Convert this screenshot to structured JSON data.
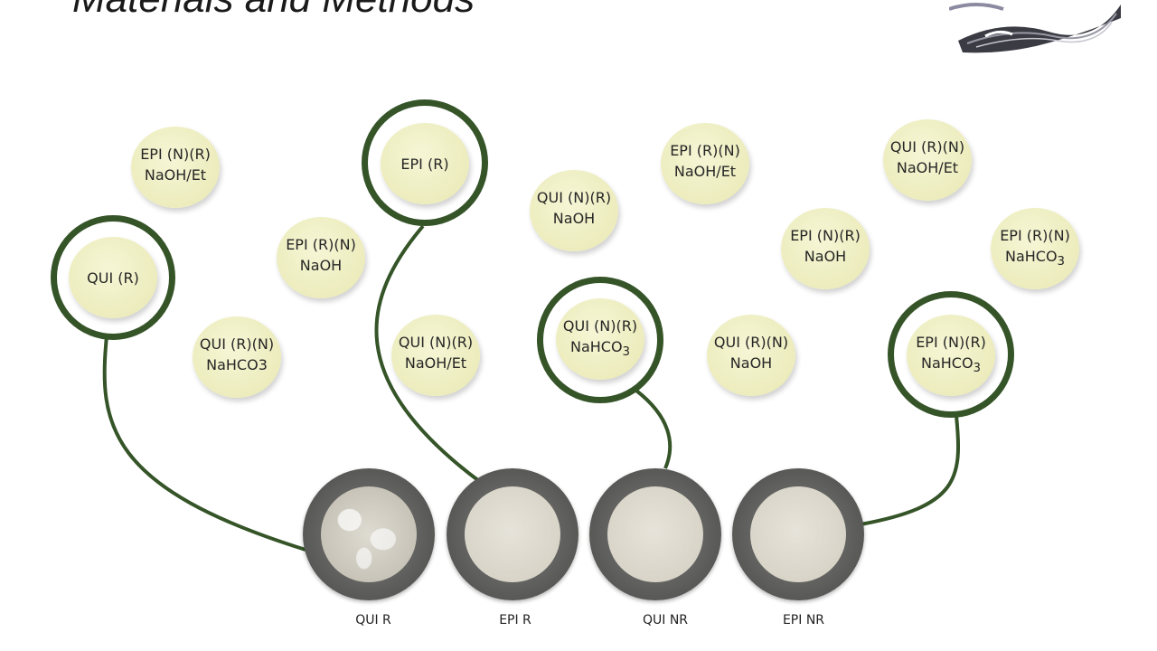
{
  "slide": {
    "title": "Materials and Methods"
  },
  "bubbles": [
    {
      "line1": "EPI (N)(R)",
      "line2": "NaOH/Et",
      "sub": ""
    },
    {
      "line1": "QUI (R)",
      "line2": "",
      "sub": ""
    },
    {
      "line1": "EPI (R)",
      "line2": "",
      "sub": ""
    },
    {
      "line1": "EPI (R)(N)",
      "line2": "NaOH",
      "sub": ""
    },
    {
      "line1": "QUI (R)(N)",
      "line2": "NaHCO3",
      "sub": ""
    },
    {
      "line1": "QUI (N)(R)",
      "line2": "NaOH/Et",
      "sub": ""
    },
    {
      "line1": "QUI (N)(R)",
      "line2": "NaOH",
      "sub": ""
    },
    {
      "line1": "QUI (N)(R)",
      "line2": "NaHCO",
      "sub": "3"
    },
    {
      "line1": "EPI (R)(N)",
      "line2": "NaOH/Et",
      "sub": ""
    },
    {
      "line1": "QUI (R)(N)",
      "line2": "NaOH",
      "sub": ""
    },
    {
      "line1": "EPI (N)(R)",
      "line2": "NaOH",
      "sub": ""
    },
    {
      "line1": "QUI (R)(N)",
      "line2": "NaOH/Et",
      "sub": ""
    },
    {
      "line1": "EPI (R)(N)",
      "line2": "NaHCO",
      "sub": "3"
    },
    {
      "line1": "EPI (N)(R)",
      "line2": "NaHCO",
      "sub": "3"
    }
  ],
  "samples": [
    {
      "label": "QUI R"
    },
    {
      "label": "EPI R"
    },
    {
      "label": "QUI NR"
    },
    {
      "label": "EPI NR"
    }
  ],
  "colors": {
    "connector": "#355428",
    "bubble": "#ececbd"
  }
}
